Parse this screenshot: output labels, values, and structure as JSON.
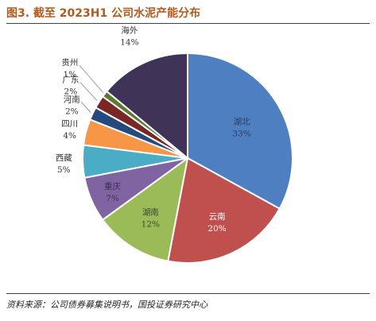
{
  "title": "图3. 截至 2023H1 公司水泥产能分布",
  "source": "资料来源：公司债券募集说明书，国投证券研究中心",
  "chart_data": {
    "type": "pie",
    "title": "图3. 截至 2023H1 公司水泥产能分布",
    "slices": [
      {
        "label": "湖北",
        "value": 33,
        "value_label": "33%",
        "color": "#4e7fc0",
        "label_color": "#2b3d5e"
      },
      {
        "label": "云南",
        "value": 20,
        "value_label": "20%",
        "color": "#c0504d",
        "label_color": "#ffffff"
      },
      {
        "label": "湖南",
        "value": 12,
        "value_label": "12%",
        "color": "#9bbb59",
        "label_color": "#3d4a22"
      },
      {
        "label": "重庆",
        "value": 7,
        "value_label": "7%",
        "color": "#8064a2",
        "label_color": "#3c2e52"
      },
      {
        "label": "西藏",
        "value": 5,
        "value_label": "5%",
        "color": "#4bacc6",
        "label_color": "#333333"
      },
      {
        "label": "四川",
        "value": 4,
        "value_label": "4%",
        "color": "#f79646",
        "label_color": "#333333"
      },
      {
        "label": "河南",
        "value": 2,
        "value_label": "2%",
        "color": "#254a7e",
        "label_color": "#333333"
      },
      {
        "label": "广东",
        "value": 2,
        "value_label": "2%",
        "color": "#7a2624",
        "label_color": "#333333"
      },
      {
        "label": "贵州",
        "value": 1,
        "value_label": "1%",
        "color": "#5d7a2d",
        "label_color": "#333333"
      },
      {
        "label": "海外",
        "value": 14,
        "value_label": "14%",
        "color": "#3f3358",
        "label_color": "#333333"
      }
    ]
  }
}
